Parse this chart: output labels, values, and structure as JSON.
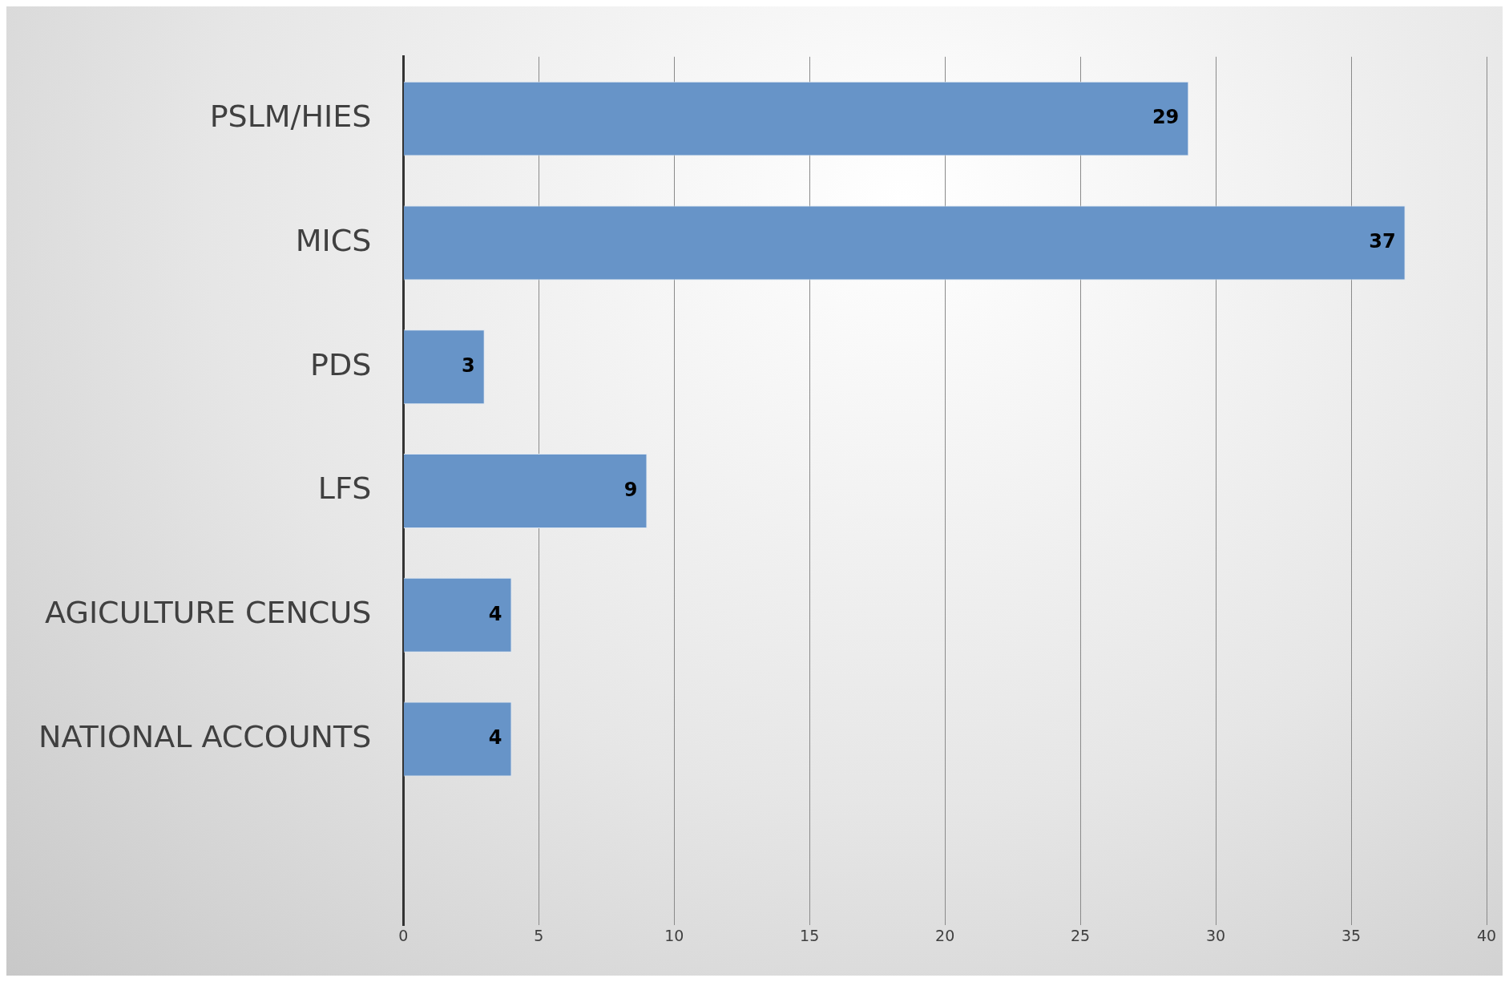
{
  "chart_data": {
    "type": "bar",
    "orientation": "horizontal",
    "categories": [
      "PSLM/HIES",
      "MICS",
      "PDS",
      "LFS",
      "AGICULTURE CENCUS",
      "NATIONAL ACCOUNTS",
      null
    ],
    "values": [
      29,
      37,
      3,
      9,
      4,
      4,
      null
    ],
    "color": "#6794c8",
    "xlim": [
      0,
      40
    ],
    "xticks": [
      0,
      5,
      10,
      15,
      20,
      25,
      30,
      35,
      40
    ],
    "grid": "x",
    "legend": false,
    "data_labels": true
  }
}
